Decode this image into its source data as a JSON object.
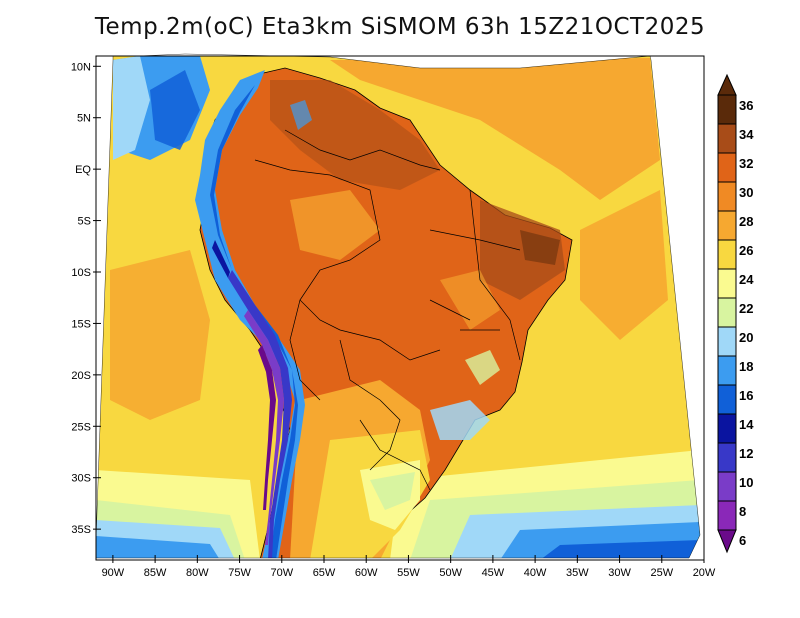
{
  "title": "Temp.2m(oC) Eta3km SiSMOM 63h 15Z21OCT2025",
  "map": {
    "region": "South America",
    "variable": "2 m air temperature",
    "units": "oC",
    "lon_range": [
      -92,
      -20
    ],
    "lat_range": [
      -38,
      11
    ],
    "lat_ticks": [
      {
        "value": 10,
        "label": "10N"
      },
      {
        "value": 5,
        "label": "5N"
      },
      {
        "value": 0,
        "label": "EQ"
      },
      {
        "value": -5,
        "label": "5S"
      },
      {
        "value": -10,
        "label": "10S"
      },
      {
        "value": -15,
        "label": "15S"
      },
      {
        "value": -20,
        "label": "20S"
      },
      {
        "value": -25,
        "label": "25S"
      },
      {
        "value": -30,
        "label": "30S"
      },
      {
        "value": -35,
        "label": "35S"
      }
    ],
    "lon_ticks": [
      {
        "value": -90,
        "label": "90W"
      },
      {
        "value": -85,
        "label": "85W"
      },
      {
        "value": -80,
        "label": "80W"
      },
      {
        "value": -75,
        "label": "75W"
      },
      {
        "value": -70,
        "label": "70W"
      },
      {
        "value": -65,
        "label": "65W"
      },
      {
        "value": -60,
        "label": "60W"
      },
      {
        "value": -55,
        "label": "55W"
      },
      {
        "value": -50,
        "label": "50W"
      },
      {
        "value": -45,
        "label": "45W"
      },
      {
        "value": -40,
        "label": "40W"
      },
      {
        "value": -35,
        "label": "35W"
      },
      {
        "value": -30,
        "label": "30W"
      },
      {
        "value": -25,
        "label": "25W"
      },
      {
        "value": -20,
        "label": "20W"
      }
    ]
  },
  "colorbar": {
    "labels": [
      "36",
      "34",
      "32",
      "30",
      "28",
      "26",
      "24",
      "22",
      "20",
      "18",
      "16",
      "14",
      "12",
      "10",
      "8",
      "6"
    ],
    "colors": {
      "6": "#6a0a8a",
      "8": "#8a28b8",
      "10": "#7a3cc8",
      "12": "#3838c8",
      "14": "#0a14a0",
      "16": "#1060d8",
      "18": "#3c9cf0",
      "20": "#a0d8f8",
      "22": "#d8f4a0",
      "24": "#fafa90",
      "26": "#f8d840",
      "28": "#f6a830",
      "30": "#f08a24",
      "32": "#e06418",
      "34": "#a84c18",
      "36": "#5a2a0a"
    }
  }
}
